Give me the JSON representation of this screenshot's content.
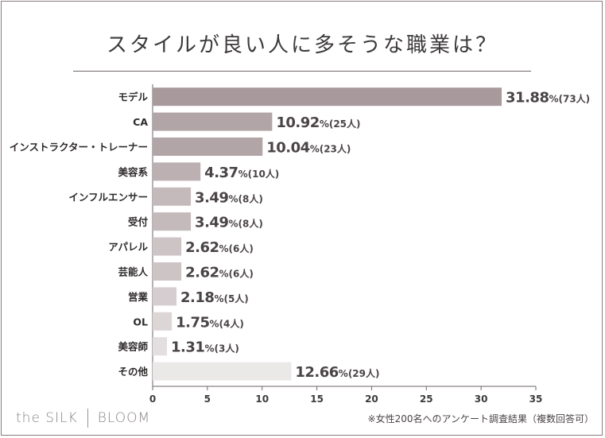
{
  "chart_data": {
    "type": "bar",
    "orientation": "horizontal",
    "title": "スタイルが良い人に多そうな職業は？",
    "categories": [
      "モデル",
      "CA",
      "インストラクター・トレーナー",
      "美容系",
      "インフルエンサー",
      "受付",
      "アパレル",
      "芸能人",
      "営業",
      "OL",
      "美容師",
      "その他"
    ],
    "values": [
      31.88,
      10.92,
      10.04,
      4.37,
      3.49,
      3.49,
      2.62,
      2.62,
      2.18,
      1.75,
      1.31,
      12.66
    ],
    "value_labels": [
      "31.88",
      "10.92",
      "10.04",
      "4.37",
      "3.49",
      "3.49",
      "2.62",
      "2.62",
      "2.18",
      "1.75",
      "1.31",
      "12.66"
    ],
    "percent_sign": "%",
    "counts": [
      "(73人)",
      "(25人)",
      "(23人)",
      "(10人)",
      "(8人)",
      "(8人)",
      "(6人)",
      "(6人)",
      "(5人)",
      "(4人)",
      "(3人)",
      "(29人)"
    ],
    "bar_colors": [
      "#a89a9c",
      "#b2a5a7",
      "#b2a5a7",
      "#bcb0b2",
      "#c4babc",
      "#c4babc",
      "#cdc4c6",
      "#cdc4c6",
      "#d5cdcf",
      "#dcd6d7",
      "#e3dedf",
      "#ebe8e8"
    ],
    "xlim": [
      0,
      35
    ],
    "xticks": [
      0,
      5,
      10,
      15,
      20,
      25,
      30,
      35
    ],
    "xlabel": "",
    "ylabel": ""
  },
  "brand": {
    "left": "the SILK",
    "right": "BLOOM"
  },
  "footnote": "※女性200名へのアンケート調査結果（複数回答可）"
}
